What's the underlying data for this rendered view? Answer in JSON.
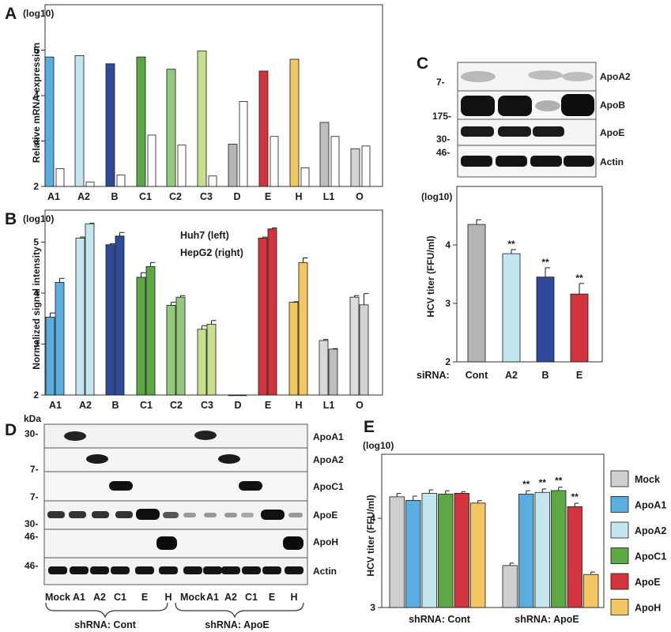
{
  "panels": {
    "A": {
      "label": "A",
      "log_label": "(log10)",
      "ylabel": "Relative mRNA expression",
      "yticks": [
        "2",
        "3",
        "4",
        "5"
      ],
      "categories": [
        "A1",
        "A2",
        "B",
        "C1",
        "C2",
        "C3",
        "D",
        "E",
        "H",
        "L1",
        "O"
      ]
    },
    "B": {
      "label": "B",
      "log_label": "(log10)",
      "ylabel": "Normalized signal intensity",
      "yticks": [
        "2",
        "3",
        "4",
        "5"
      ],
      "legend": [
        "Huh7 (left)",
        "HepG2 (right)"
      ],
      "categories": [
        "A1",
        "A2",
        "B",
        "C1",
        "C2",
        "C3",
        "D",
        "E",
        "H",
        "L1",
        "O"
      ]
    },
    "C": {
      "label": "C",
      "blot_labels": [
        "ApoA2",
        "ApoB",
        "ApoE",
        "Actin"
      ],
      "markers": [
        "7-",
        "175-",
        "30-",
        "46-"
      ],
      "log_label": "(log10)",
      "ylabel": "HCV titer (FFU/ml)",
      "yticks": [
        "2",
        "3",
        "4"
      ],
      "xprefix": "siRNA:",
      "categories": [
        "Cont",
        "A2",
        "B",
        "E"
      ],
      "sig": "**"
    },
    "D": {
      "label": "D",
      "kda": "kDa",
      "markers": [
        "30-",
        "7-",
        "7-",
        "30-",
        "46-",
        "46-"
      ],
      "blot_labels": [
        "ApoA1",
        "ApoA2",
        "ApoC1",
        "ApoE",
        "ApoH",
        "Actin"
      ],
      "lanes": [
        "Mock",
        "A1",
        "A2",
        "C1",
        "E",
        "H",
        "Mock",
        "A1",
        "A2",
        "C1",
        "E",
        "H"
      ],
      "groups": [
        "shRNA: Cont",
        "shRNA: ApoE"
      ]
    },
    "E": {
      "label": "E",
      "log_label": "(log10)",
      "ylabel": "HCV titer (FFU/ml)",
      "yticks": [
        "3",
        "4"
      ],
      "groups": [
        "shRNA: Cont",
        "shRNA: ApoE"
      ],
      "legend": [
        "Mock",
        "ApoA1",
        "ApoA2",
        "ApoC1",
        "ApoE",
        "ApoH"
      ],
      "sig": "**"
    }
  },
  "colors": {
    "A1": "#5aaedf",
    "A2": "#c3e6ef",
    "B": "#2f4a9a",
    "C1": "#5da844",
    "C2": "#93c97a",
    "C3": "#c6df8c",
    "D": "#b5b5b5",
    "E": "#d2343e",
    "H": "#f2c661",
    "L1": "#bdbdbd",
    "O": "#d3d3d3",
    "Mock": "#cfcfcf"
  },
  "chart_data": [
    {
      "panel": "A",
      "type": "bar",
      "title": "",
      "ylabel": "Relative mRNA expression",
      "ylim": [
        2,
        5.4
      ],
      "categories": [
        "A1",
        "A2",
        "B",
        "C1",
        "C2",
        "C3",
        "D",
        "E",
        "H",
        "L1",
        "O"
      ],
      "series": [
        {
          "values": [
            4.85,
            4.88,
            4.7,
            4.85,
            4.58,
            4.98,
            2.93,
            4.54,
            4.8,
            3.41,
            2.83
          ]
        },
        {
          "values": [
            2.39,
            2.1,
            2.25,
            3.13,
            2.91,
            2.23,
            3.87,
            3.1,
            2.41,
            3.1,
            2.89
          ]
        }
      ]
    },
    {
      "panel": "B",
      "type": "bar",
      "title": "",
      "ylabel": "Normalized signal intensity",
      "ylim": [
        2,
        5.4
      ],
      "categories": [
        "A1",
        "A2",
        "B",
        "C1",
        "C2",
        "C3",
        "D",
        "E",
        "H",
        "L1",
        "O"
      ],
      "series": [
        {
          "name": "Huh7 (left)",
          "values": [
            3.53,
            5.08,
            4.95,
            4.31,
            3.76,
            3.29,
            2.0,
            5.08,
            3.82,
            3.07,
            3.92
          ],
          "errors": [
            0.08,
            0.02,
            0.02,
            0.09,
            0.06,
            0.07,
            0.0,
            0.02,
            0.01,
            0.02,
            0.03
          ]
        },
        {
          "name": "HepG2 (right)",
          "values": [
            4.21,
            5.36,
            5.12,
            4.52,
            3.92,
            3.39,
            2.0,
            5.26,
            4.6,
            2.9,
            3.77
          ],
          "errors": [
            0.08,
            0.01,
            0.07,
            0.08,
            0.03,
            0.07,
            0.0,
            0.02,
            0.09,
            0.01,
            0.22
          ]
        }
      ]
    },
    {
      "panel": "C",
      "type": "bar",
      "title": "",
      "ylabel": "HCV titer (FFU/ml)",
      "ylim": [
        2,
        4.65
      ],
      "categories": [
        "Cont",
        "A2",
        "B",
        "E"
      ],
      "values": [
        4.35,
        3.85,
        3.45,
        3.16
      ],
      "errors": [
        0.08,
        0.07,
        0.16,
        0.18
      ],
      "significant": [
        false,
        true,
        true,
        true
      ]
    },
    {
      "panel": "E",
      "type": "bar",
      "title": "",
      "ylabel": "HCV titer (FFU/ml)",
      "ylim": [
        3,
        4.71
      ],
      "categories": [
        "shRNA: Cont",
        "shRNA: ApoE"
      ],
      "series": [
        {
          "name": "Mock",
          "values": [
            4.24,
            3.47
          ],
          "errors": [
            0.02,
            0.01
          ]
        },
        {
          "name": "ApoA1",
          "values": [
            4.2,
            4.27
          ],
          "errors": [
            0.03,
            0.02
          ]
        },
        {
          "name": "ApoA2",
          "values": [
            4.28,
            4.29
          ],
          "errors": [
            0.02,
            0.02
          ]
        },
        {
          "name": "ApoC1",
          "values": [
            4.27,
            4.31
          ],
          "errors": [
            0.02,
            0.02
          ]
        },
        {
          "name": "ApoE",
          "values": [
            4.28,
            4.13
          ],
          "errors": [
            0.0,
            0.02
          ]
        },
        {
          "name": "ApoH",
          "values": [
            4.17,
            3.37
          ],
          "errors": [
            0.01,
            0.01
          ]
        }
      ],
      "significant": [
        [
          false,
          false
        ],
        [
          false,
          true
        ],
        [
          false,
          true
        ],
        [
          false,
          true
        ],
        [
          false,
          true
        ],
        [
          false,
          false
        ]
      ]
    }
  ]
}
